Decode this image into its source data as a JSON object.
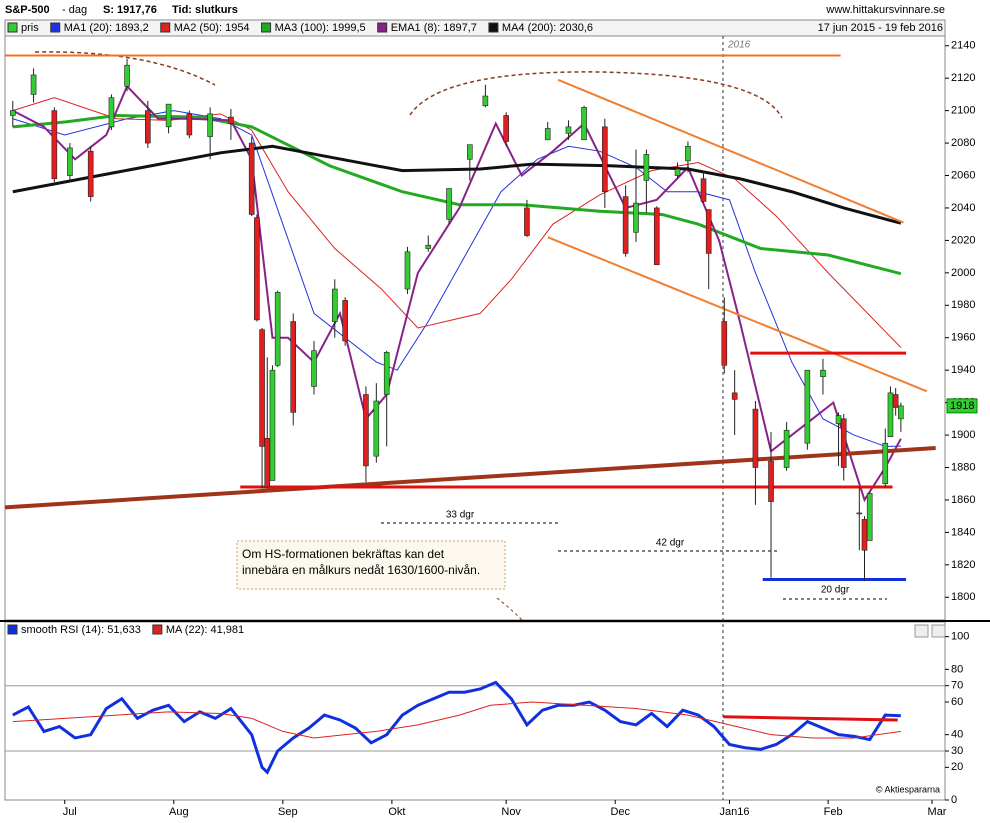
{
  "header": {
    "title": "S&P-500",
    "period": "- dag",
    "last": "S: 1917,76",
    "time": "Tid: slutkurs",
    "site": "www.hittakursvinnare.se",
    "range": "17 jun 2015 - 19 feb 2016",
    "year": "2016",
    "copyright": "© Aktiespararna"
  },
  "annotations": {
    "box": [
      "Om HS-formationen bekräftas kan det",
      "innebära en målkurs nedåt 1630/1600-nivån."
    ],
    "spans": [
      "33 dgr",
      "42 dgr",
      "20 dgr"
    ]
  },
  "chart_data": [
    {
      "type": "candlestick",
      "name": "pris",
      "color": "#33cc33",
      "down_color": "#e02020",
      "x": [
        0,
        4,
        8,
        11,
        15,
        19,
        22,
        26,
        30,
        34,
        38,
        42,
        46,
        47,
        48,
        49,
        50,
        51,
        54,
        58,
        62,
        64,
        68,
        70,
        72,
        76,
        80,
        84,
        88,
        91,
        95,
        99,
        103,
        107,
        110,
        114,
        118,
        120,
        122,
        124,
        128,
        130,
        133,
        134,
        137,
        139,
        143,
        146,
        149,
        153,
        156,
        159,
        160,
        163,
        164,
        165,
        168,
        169,
        170,
        171
      ],
      "open": [
        2097,
        2110,
        2100,
        2060,
        2075,
        2090,
        2115,
        2100,
        2090,
        2098,
        2084,
        2096,
        2080,
        2034,
        1965,
        1898,
        1872,
        1943,
        1970,
        1930,
        1970,
        1983,
        1925,
        1887,
        1925,
        1990,
        2015,
        2033,
        2070,
        2103,
        2097,
        2040,
        2082,
        2086,
        2082,
        2090,
        2047,
        2025,
        2057,
        2040,
        2060,
        2069,
        2058,
        2039,
        1970,
        1926,
        1916,
        1884,
        1880,
        1895,
        1936,
        1907,
        1910,
        1852,
        1848,
        1835,
        1870,
        1899,
        1925,
        1910
      ],
      "high": [
        2106,
        2126,
        2102,
        2080,
        2078,
        2110,
        2132,
        2106,
        2104,
        2100,
        2102,
        2101,
        2084,
        2036,
        1966,
        1948,
        1943,
        1989,
        1975,
        1958,
        1996,
        1985,
        1930,
        1932,
        1952,
        2016,
        2023,
        2052,
        2079,
        2116,
        2099,
        2045,
        2093,
        2094,
        2103,
        2095,
        2054,
        2076,
        2076,
        2041,
        2068,
        2081,
        2063,
        2039,
        1985,
        1940,
        1921,
        1902,
        1908,
        1940,
        1947,
        1914,
        1913,
        1868,
        1850,
        1865,
        1904,
        1930,
        1929,
        1920
      ],
      "low": [
        2090,
        2105,
        2056,
        2056,
        2044,
        2088,
        2112,
        2077,
        2086,
        2083,
        2070,
        2082,
        2035,
        1970,
        1867,
        1867,
        1872,
        1942,
        1906,
        1925,
        1960,
        1955,
        1871,
        1883,
        1893,
        1987,
        2013,
        2030,
        2057,
        2102,
        2078,
        2022,
        2082,
        2082,
        2082,
        2040,
        2010,
        2019,
        2037,
        2005,
        2058,
        2062,
        2043,
        1990,
        1938,
        1900,
        1857,
        1812,
        1878,
        1891,
        1925,
        1881,
        1872,
        1829,
        1810,
        1835,
        1868,
        1899,
        1912,
        1902
      ],
      "close": [
        2100,
        2122,
        2058,
        2077,
        2047,
        2108,
        2128,
        2080,
        2104,
        2085,
        2098,
        2092,
        2036,
        1971,
        1893,
        1868,
        1940,
        1988,
        1914,
        1952,
        1990,
        1958,
        1881,
        1921,
        1951,
        2013,
        2017,
        2052,
        2079,
        2109,
        2081,
        2023,
        2089,
        2090,
        2102,
        2050,
        2012,
        2043,
        2073,
        2005,
        2064,
        2078,
        2044,
        2012,
        1943,
        1922,
        1880,
        1859,
        1903,
        1940,
        1940,
        1912,
        1880,
        1852,
        1829,
        1864,
        1895,
        1926,
        1917,
        1918
      ],
      "series": [
        {
          "name": "MA1 (20): 1893,2",
          "color": "#2233dd",
          "width": 1,
          "x": [
            0,
            10,
            22,
            31,
            40,
            46,
            52,
            58,
            64,
            70,
            74,
            80,
            87,
            94,
            101,
            107,
            113,
            120,
            126,
            132,
            138,
            143,
            150,
            156,
            162,
            168,
            171
          ],
          "values": [
            2095,
            2085,
            2095,
            2100,
            2095,
            2085,
            2030,
            1975,
            1960,
            1945,
            1940,
            1970,
            2010,
            2050,
            2070,
            2078,
            2075,
            2065,
            2050,
            2050,
            2045,
            2000,
            1945,
            1910,
            1900,
            1893,
            1893.2
          ]
        },
        {
          "name": "MA2 (50): 1954",
          "color": "#dd2222",
          "width": 1,
          "x": [
            0,
            8,
            20,
            30,
            40,
            46,
            53,
            62,
            71,
            78,
            90,
            96,
            104,
            113,
            123,
            132,
            139,
            147,
            157,
            171
          ],
          "values": [
            2100,
            2108,
            2095,
            2094,
            2098,
            2088,
            2050,
            2015,
            1990,
            1966,
            1975,
            1996,
            2030,
            2048,
            2063,
            2068,
            2058,
            2035,
            2000,
            1954
          ]
        },
        {
          "name": "MA3 (100): 1999,5",
          "color": "#22aa22",
          "width": 3,
          "x": [
            0,
            10,
            20,
            36,
            46,
            61,
            75,
            86,
            98,
            113,
            125,
            132,
            144,
            157,
            171
          ],
          "values": [
            2090,
            2093,
            2097,
            2096,
            2090,
            2066,
            2050,
            2042,
            2042,
            2038,
            2036,
            2030,
            2015,
            2011,
            1999.5
          ]
        },
        {
          "name": "EMA1 (8): 1897,7",
          "color": "#882288",
          "width": 2,
          "x": [
            0,
            6,
            12,
            18,
            22,
            28,
            34,
            42,
            46,
            50,
            53,
            58,
            63,
            68,
            72,
            78,
            86,
            93,
            98,
            104,
            110,
            118,
            124,
            130,
            136,
            140,
            146,
            152,
            158,
            164,
            168,
            171
          ],
          "values": [
            2100,
            2090,
            2070,
            2085,
            2115,
            2095,
            2095,
            2094,
            2070,
            1960,
            1960,
            1945,
            1975,
            1910,
            1925,
            2000,
            2040,
            2092,
            2060,
            2075,
            2092,
            2040,
            2045,
            2065,
            2020,
            1970,
            1890,
            1905,
            1920,
            1860,
            1880,
            1897.7
          ]
        },
        {
          "name": "MA4 (200): 2030,6",
          "color": "#111111",
          "width": 3,
          "x": [
            0,
            20,
            40,
            50,
            60,
            75,
            90,
            100,
            115,
            130,
            140,
            150,
            160,
            171
          ],
          "values": [
            2050,
            2062,
            2074,
            2078,
            2072,
            2063,
            2064,
            2067,
            2066,
            2064,
            2058,
            2050,
            2040,
            2030.6
          ]
        }
      ],
      "trendlines": [
        {
          "color": "#f07020",
          "width": 2,
          "x": [
            -1.5,
            159.4
          ],
          "y": [
            2134,
            2134
          ]
        },
        {
          "color": "#f08030",
          "width": 2,
          "x": [
            105,
            171.5
          ],
          "y": [
            2119,
            2031
          ]
        },
        {
          "color": "#f08030",
          "width": 2,
          "x": [
            103,
            176
          ],
          "y": [
            2022,
            1927
          ]
        },
        {
          "color": "#a0341a",
          "width": 4,
          "x": [
            -1.5,
            177.7
          ],
          "y": [
            1855.4,
            1892
          ]
        },
        {
          "color": "#e01010",
          "width": 3,
          "x": [
            43.8,
            169.4
          ],
          "y": [
            1868,
            1868
          ]
        },
        {
          "color": "#e01010",
          "width": 3,
          "x": [
            142,
            172
          ],
          "y": [
            1950.5,
            1950.5
          ]
        },
        {
          "color": "#1030e0",
          "width": 3,
          "x": [
            144.4,
            172
          ],
          "y": [
            1811,
            1811
          ]
        }
      ],
      "last_price": 1918,
      "xlim": [
        -1.5,
        179.5
      ],
      "ylim": [
        1786,
        2146
      ],
      "yticks": [
        1800,
        1820,
        1840,
        1860,
        1880,
        1900,
        1920,
        1940,
        1960,
        1980,
        2000,
        2020,
        2040,
        2060,
        2080,
        2100,
        2120,
        2140
      ]
    },
    {
      "type": "line",
      "series": [
        {
          "name": "smooth RSI (14): 51,633",
          "color": "#1030e0",
          "width": 3,
          "x": [
            0,
            3,
            6,
            9,
            12,
            15,
            18,
            21,
            24,
            27,
            30,
            33,
            36,
            39,
            42,
            44,
            46,
            48,
            49,
            51,
            54,
            57,
            60,
            63,
            66,
            69,
            72,
            75,
            78,
            81,
            84,
            87,
            90,
            93,
            96,
            99,
            102,
            105,
            108,
            111,
            114,
            117,
            120,
            123,
            126,
            129,
            132,
            135,
            138,
            141,
            144,
            147,
            150,
            153,
            156,
            159,
            162,
            165,
            168,
            171
          ],
          "values": [
            52,
            57,
            42,
            45,
            38,
            40,
            56,
            62,
            50,
            55,
            58,
            48,
            54,
            50,
            56,
            48,
            40,
            20,
            17,
            30,
            38,
            44,
            52,
            49,
            44,
            35,
            40,
            52,
            58,
            62,
            66,
            66,
            68,
            72,
            62,
            46,
            55,
            58,
            58,
            60,
            55,
            48,
            46,
            53,
            45,
            55,
            52,
            45,
            34,
            32,
            31,
            34,
            40,
            48,
            44,
            40,
            39,
            37,
            52,
            51.6
          ]
        },
        {
          "name": "MA (22): 41,981",
          "color": "#dd2222",
          "width": 1,
          "x": [
            0,
            10,
            20,
            30,
            40,
            46,
            52,
            58,
            64,
            70,
            78,
            86,
            92,
            100,
            110,
            120,
            130,
            138,
            146,
            154,
            162,
            171
          ],
          "values": [
            48,
            50,
            52,
            54,
            53,
            50,
            42,
            38,
            40,
            42,
            46,
            52,
            58,
            60,
            58,
            56,
            52,
            46,
            40,
            38,
            38,
            42
          ]
        }
      ],
      "trendlines": [
        {
          "color": "#e01010",
          "width": 3,
          "x": [
            136.8,
            170.4
          ],
          "y": [
            51,
            49
          ]
        }
      ],
      "hlines": [
        70,
        30
      ],
      "xlim": [
        -1.5,
        179.5
      ],
      "ylim": [
        0,
        109
      ],
      "yticks": [
        0,
        20,
        30,
        40,
        60,
        70,
        80,
        100
      ],
      "xticks": [
        {
          "value": 10,
          "label": "Jul"
        },
        {
          "value": 31,
          "label": "Aug"
        },
        {
          "value": 52,
          "label": "Sep"
        },
        {
          "value": 73,
          "label": "Okt"
        },
        {
          "value": 95,
          "label": "Nov"
        },
        {
          "value": 116,
          "label": "Dec"
        },
        {
          "value": 138,
          "label": "Jan16"
        },
        {
          "value": 157,
          "label": "Feb"
        },
        {
          "value": 177,
          "label": "Mar"
        }
      ]
    }
  ]
}
